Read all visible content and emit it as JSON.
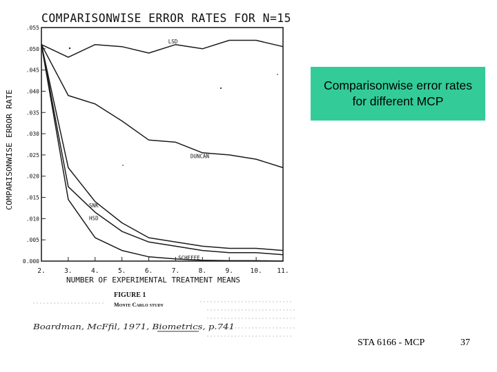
{
  "chart_data": {
    "type": "line",
    "title": "COMPARISONWISE ERROR RATES FOR N=15",
    "xlabel": "NUMBER OF EXPERIMENTAL TREATMENT MEANS",
    "ylabel": "COMPARISONWISE ERROR RATE",
    "x": [
      2,
      3,
      4,
      5,
      6,
      7,
      8,
      9,
      10,
      11
    ],
    "xlim": [
      2,
      11
    ],
    "ylim": [
      0.0,
      0.055
    ],
    "x_tick_labels": [
      "2.",
      "3.",
      "4.",
      "5.",
      "6.",
      "7.",
      "8.",
      "9.",
      "10.",
      "11."
    ],
    "y_ticks": [
      0.0,
      0.005,
      0.01,
      0.015,
      0.02,
      0.025,
      0.03,
      0.035,
      0.04,
      0.045,
      0.05,
      0.055
    ],
    "y_tick_labels": [
      "0.000",
      ".005",
      ".010",
      ".015",
      ".020",
      ".025",
      ".030",
      ".035",
      ".040",
      ".045",
      ".050",
      ".055"
    ],
    "series": [
      {
        "name": "LSD",
        "values": [
          0.051,
          0.048,
          0.051,
          0.0505,
          0.049,
          0.051,
          0.05,
          0.052,
          0.052,
          0.0505
        ]
      },
      {
        "name": "DUNCAN",
        "values": [
          0.051,
          0.039,
          0.037,
          0.033,
          0.0285,
          0.028,
          0.0255,
          0.025,
          0.024,
          0.022
        ]
      },
      {
        "name": "SNK",
        "values": [
          0.051,
          0.022,
          0.014,
          0.009,
          0.0055,
          0.0045,
          0.0035,
          0.003,
          0.003,
          0.0025
        ]
      },
      {
        "name": "HSD",
        "values": [
          0.051,
          0.0175,
          0.0115,
          0.007,
          0.0045,
          0.0035,
          0.0025,
          0.002,
          0.002,
          0.0015
        ]
      },
      {
        "name": "SCHEFFE",
        "values": [
          0.051,
          0.0145,
          0.0055,
          0.0025,
          0.001,
          0.0005,
          0.0002,
          0.0001,
          0.0001,
          0.0
        ]
      }
    ],
    "legend": "labels on curves",
    "grid": false
  },
  "figure": {
    "caption": "FIGURE 1",
    "subcaption": "Monte Carlo study",
    "citation": "Boardman, McFfil, 1971, Biometrics, p.741"
  },
  "callout": {
    "text": "Comparisonwise error rates for different MCP",
    "color": "#33cc99"
  },
  "footer": {
    "course": "STA 6166 - MCP",
    "page": "37"
  }
}
